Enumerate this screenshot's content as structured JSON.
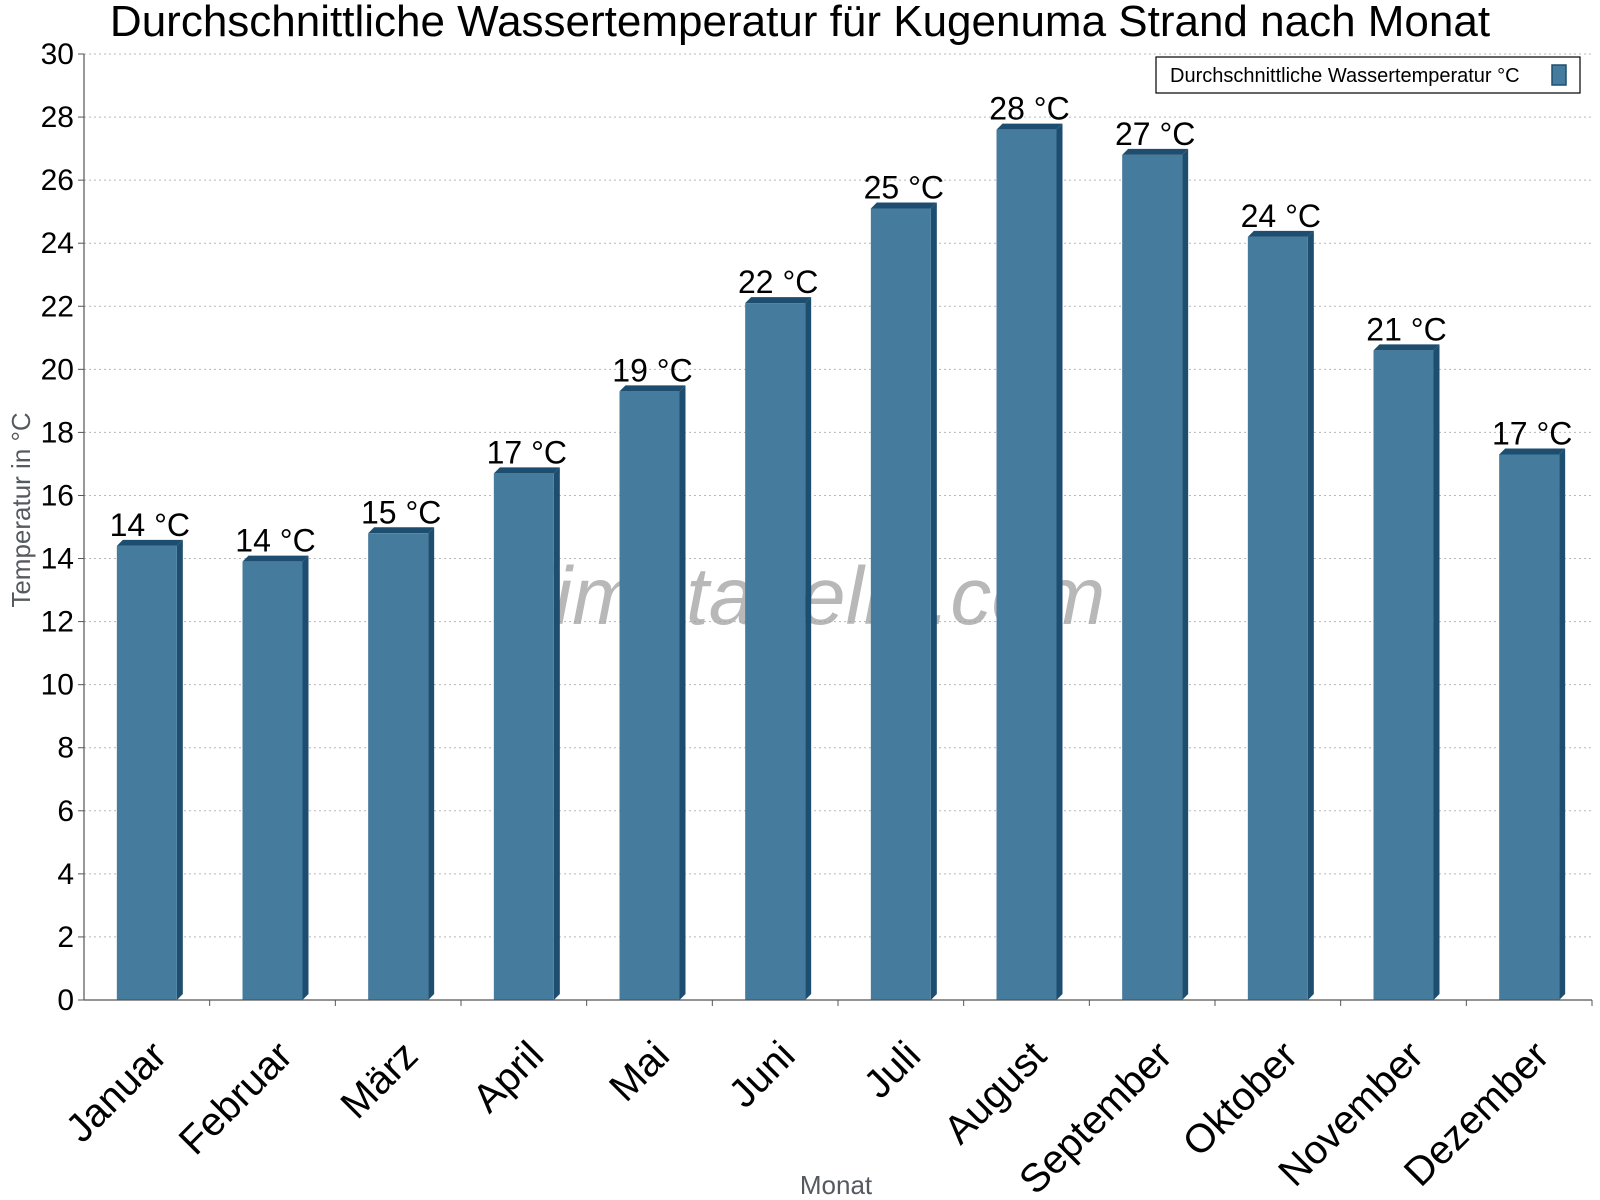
{
  "chart_data": {
    "type": "bar",
    "title": "Durchschnittliche Wassertemperatur für Kugenuma Strand nach Monat",
    "xlabel": "Monat",
    "ylabel": "Temperatur in °C",
    "categories": [
      "Januar",
      "Februar",
      "März",
      "April",
      "Mai",
      "Juni",
      "Juli",
      "August",
      "September",
      "Oktober",
      "November",
      "Dezember"
    ],
    "series": [
      {
        "name": "Durchschnittliche Wassertemperatur °C",
        "values": [
          14.4,
          13.9,
          14.8,
          16.7,
          19.3,
          22.1,
          25.1,
          27.6,
          26.8,
          24.2,
          20.6,
          17.3
        ],
        "labels": [
          "14 °C",
          "14 °C",
          "15 °C",
          "17 °C",
          "19 °C",
          "22 °C",
          "25 °C",
          "28 °C",
          "27 °C",
          "24 °C",
          "21 °C",
          "17 °C"
        ]
      }
    ],
    "ylim": [
      0,
      30
    ],
    "yticks": [
      0,
      2,
      4,
      6,
      8,
      10,
      12,
      14,
      16,
      18,
      20,
      22,
      24,
      26,
      28,
      30
    ],
    "grid": "horizontal-dotted",
    "legend_position": "top-right",
    "colors": {
      "bar": "#457b9d",
      "bar_side": "#1d4e6f"
    }
  },
  "watermark": "klimatabelle.com"
}
